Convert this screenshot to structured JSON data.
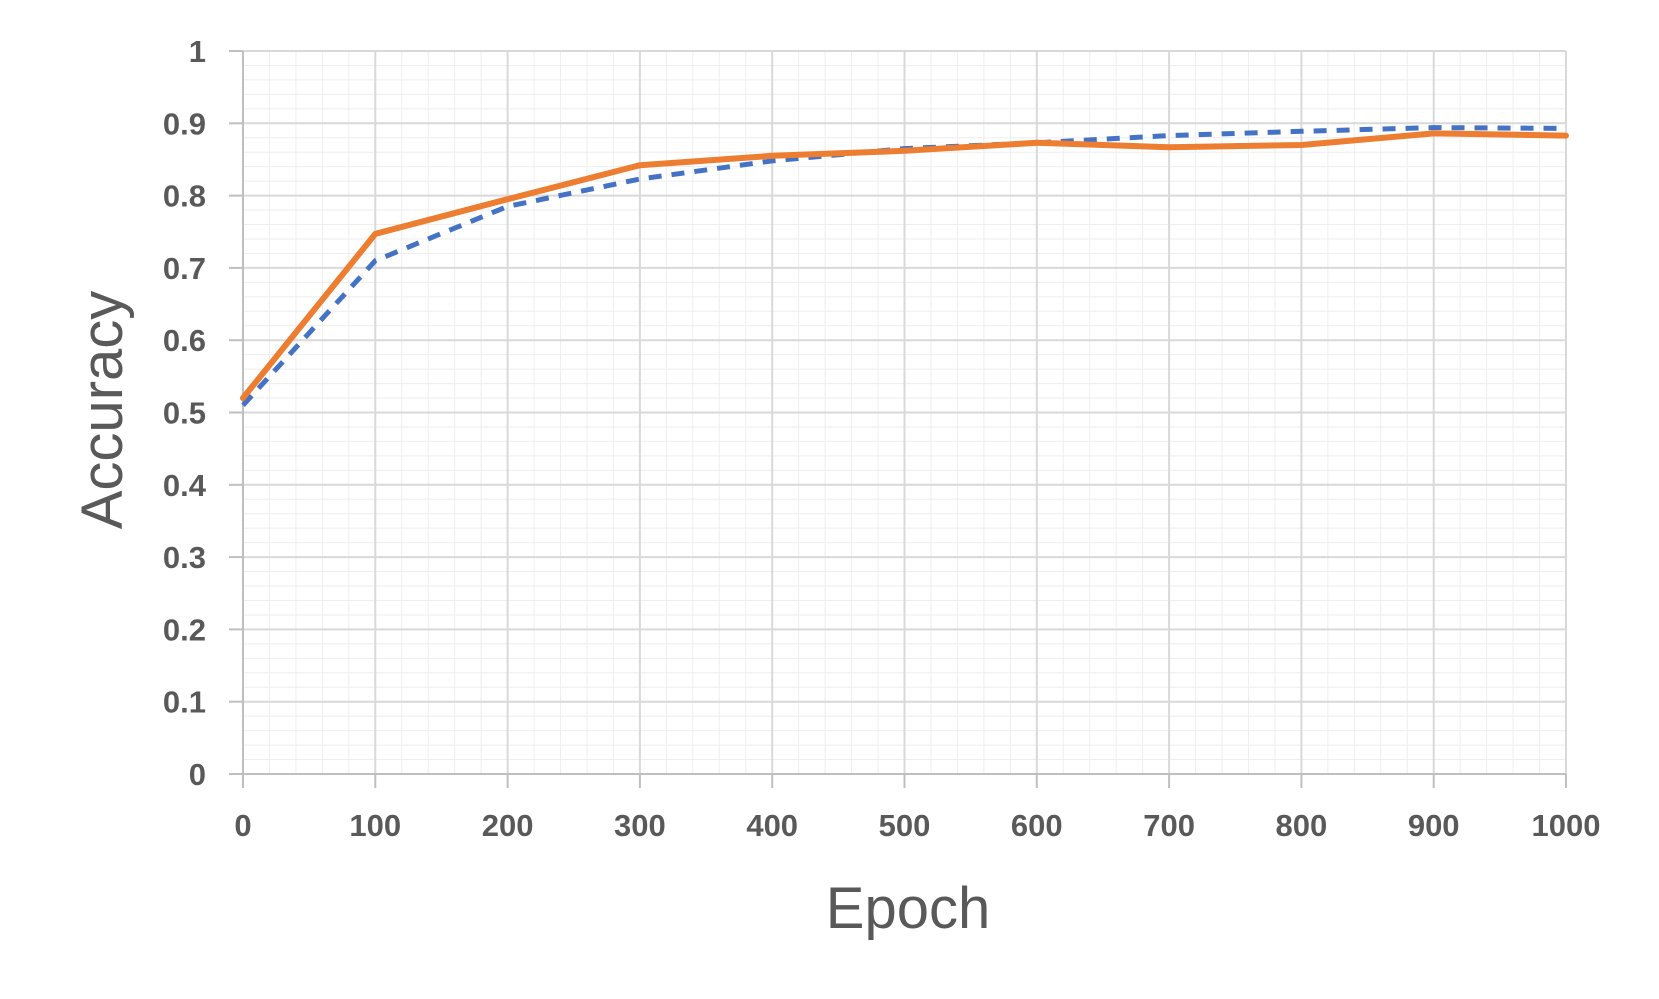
{
  "chart_data": {
    "type": "line",
    "title": "",
    "xlabel": "Epoch",
    "ylabel": "Accuracy",
    "xlim": [
      0,
      1000
    ],
    "ylim": [
      0,
      1
    ],
    "x_ticks": [
      "0",
      "100",
      "200",
      "300",
      "400",
      "500",
      "600",
      "700",
      "800",
      "900",
      "1000"
    ],
    "y_ticks": [
      "0",
      "0.1",
      "0.2",
      "0.3",
      "0.4",
      "0.5",
      "0.6",
      "0.7",
      "0.8",
      "0.9",
      "1"
    ],
    "grid": true,
    "legend": "none",
    "x": [
      0,
      100,
      200,
      300,
      400,
      500,
      600,
      700,
      800,
      900,
      1000
    ],
    "series": [
      {
        "values": [
          0.51,
          0.71,
          0.785,
          0.823,
          0.848,
          0.865,
          0.873,
          0.883,
          0.889,
          0.894,
          0.893
        ],
        "color": "#4472C4",
        "style": "dashed"
      },
      {
        "values": [
          0.52,
          0.747,
          0.795,
          0.842,
          0.855,
          0.862,
          0.873,
          0.867,
          0.87,
          0.886,
          0.883
        ],
        "color": "#ED7D31",
        "style": "solid"
      }
    ],
    "colors": {
      "gridline": "#d9d9d9",
      "minor_gridline": "#eeeeee",
      "axis": "#bfbfbf",
      "text": "#595959"
    }
  }
}
